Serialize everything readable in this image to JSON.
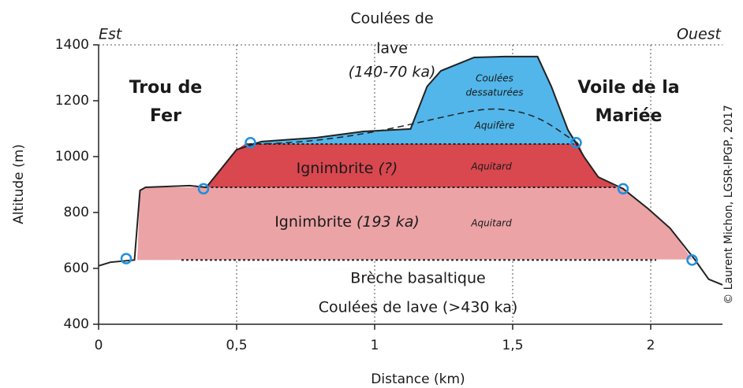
{
  "chart_data": {
    "type": "cross-section",
    "x_label": "Distance (km)",
    "y_label": "Altitude (m)",
    "xlim": [
      0,
      2.26
    ],
    "ylim": [
      400,
      1400
    ],
    "xticks": [
      0,
      {
        "value": 0.5,
        "label": "0,5"
      },
      1,
      {
        "value": 1.5,
        "label": "1,5"
      },
      2
    ],
    "yticks": [
      400,
      600,
      800,
      1000,
      1200,
      1400
    ],
    "grid": "x",
    "surface": {
      "color": "#222222",
      "x": [
        0,
        0.043,
        0.13,
        0.15,
        0.17,
        0.33,
        0.39,
        0.5,
        0.59,
        0.79,
        0.96,
        1.13,
        1.19,
        1.24,
        1.36,
        1.47,
        1.59,
        1.64,
        1.7,
        1.76,
        1.81,
        1.9,
        1.99,
        2.07,
        2.16,
        2.21,
        2.26
      ],
      "y": [
        609,
        622,
        630,
        879,
        890,
        896,
        890,
        1025,
        1054,
        1068,
        1090,
        1099,
        1251,
        1307,
        1355,
        1358,
        1358,
        1251,
        1096,
        997,
        927,
        885,
        814,
        744,
        631,
        561,
        541
      ]
    },
    "layers": [
      {
        "label": "Ignimbrite",
        "age": "(193 ka)",
        "role": "Aquitard",
        "color": "#eba3a6",
        "x": [
          0.14,
          0.15,
          0.17,
          1.9,
          1.99,
          2.07,
          2.15,
          0.14
        ],
        "y": [
          630,
          879,
          890,
          890,
          814,
          744,
          632,
          630
        ]
      },
      {
        "label": "Ignimbrite",
        "age": "(?)",
        "role": "Aquitard",
        "color": "#d9474f",
        "x": [
          0.39,
          0.5,
          0.53,
          1.74,
          1.76,
          1.81,
          1.88
        ],
        "y": [
          890,
          1025,
          1045,
          1045,
          997,
          927,
          890
        ]
      },
      {
        "label": "Coulées",
        "age": "dessaturées",
        "role": "Aquifère",
        "color": "#52b6ea",
        "x": [
          0.53,
          0.59,
          0.79,
          0.96,
          1.13,
          1.19,
          1.24,
          1.36,
          1.47,
          1.59,
          1.64,
          1.7,
          1.74
        ],
        "y": [
          1045,
          1054,
          1068,
          1090,
          1099,
          1251,
          1307,
          1355,
          1358,
          1358,
          1251,
          1096,
          1045
        ]
      }
    ],
    "annotations": {
      "west": "Est",
      "east": "Ouest",
      "top_title": [
        "Coulées de",
        "lave",
        "(140-70 ka)"
      ],
      "left_site": [
        "Trou de",
        "Fer"
      ],
      "right_site": [
        "Voile de la",
        "Mariée"
      ],
      "breccia": "Brèche basaltique",
      "basement": "Coulées de lave (>430 ka)",
      "credit": "© Laurent Michon, LGSR-IPGP, 2017"
    }
  }
}
